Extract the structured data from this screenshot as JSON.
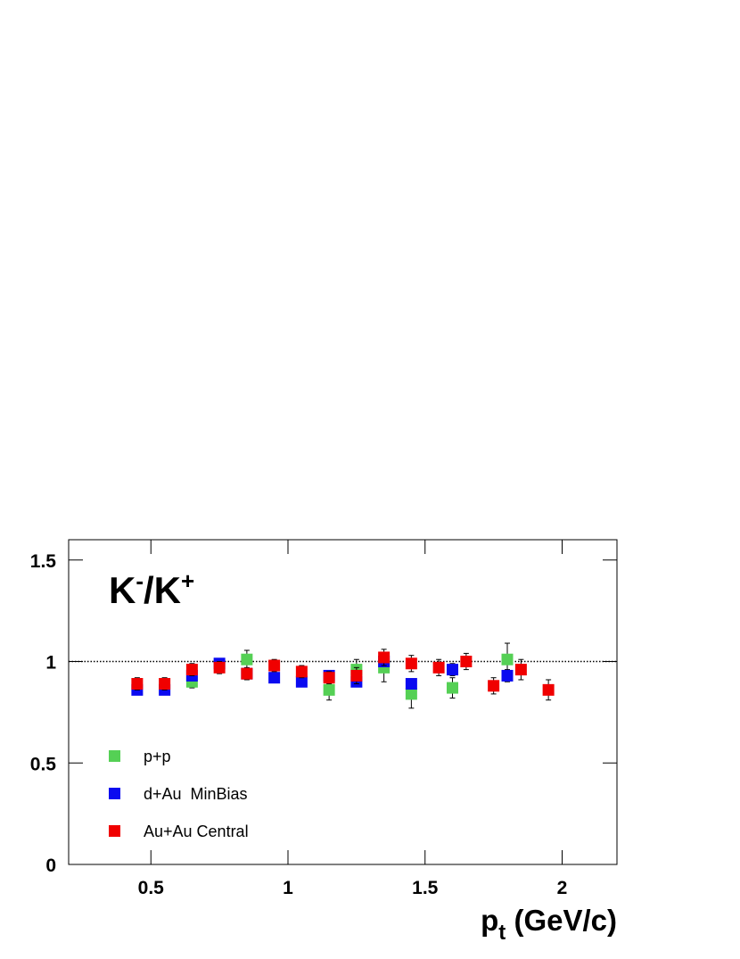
{
  "chart_data": {
    "type": "scatter",
    "annotation": [
      "K",
      "-",
      "/K",
      "+"
    ],
    "x_label": [
      "p",
      "t",
      " (GeV/c)"
    ],
    "xlim": [
      0.2,
      2.2
    ],
    "ylim": [
      0,
      1.6
    ],
    "xticks": [
      0.5,
      1,
      1.5,
      2
    ],
    "yticks": [
      0,
      0.5,
      1,
      1.5
    ],
    "reference_line": 1,
    "legend": "lower left",
    "series": [
      {
        "name": "p+p",
        "color": "#55d055",
        "x": [
          0.65,
          0.85,
          1.15,
          1.25,
          1.35,
          1.45,
          1.6,
          1.8
        ],
        "values": [
          0.9,
          1.01,
          0.86,
          0.96,
          0.97,
          0.84,
          0.87,
          1.01
        ],
        "errors": [
          0.03,
          0.045,
          0.05,
          0.05,
          0.07,
          0.07,
          0.05,
          0.08
        ]
      },
      {
        "name": "d+Au  MinBias",
        "color": "#0a0af0",
        "x": [
          0.45,
          0.55,
          0.65,
          0.75,
          0.85,
          0.95,
          1.05,
          1.15,
          1.25,
          1.35,
          1.45,
          1.6,
          1.8
        ],
        "values": [
          0.86,
          0.86,
          0.93,
          0.99,
          0.94,
          0.92,
          0.9,
          0.93,
          0.9,
          1.0,
          0.89,
          0.96,
          0.93
        ],
        "errors": [
          0.02,
          0.02,
          0.02,
          0.02,
          0.02,
          0.02,
          0.02,
          0.02,
          0.02,
          0.02,
          0.02,
          0.03,
          0.03
        ]
      },
      {
        "name": "Au+Au Central",
        "color": "#f00000",
        "x": [
          0.45,
          0.55,
          0.65,
          0.75,
          0.85,
          0.95,
          1.05,
          1.15,
          1.25,
          1.35,
          1.45,
          1.55,
          1.65,
          1.75,
          1.85,
          1.95
        ],
        "values": [
          0.89,
          0.89,
          0.96,
          0.97,
          0.94,
          0.98,
          0.95,
          0.92,
          0.93,
          1.02,
          0.99,
          0.97,
          1.0,
          0.88,
          0.96,
          0.86
        ],
        "errors": [
          0.03,
          0.03,
          0.03,
          0.03,
          0.03,
          0.03,
          0.03,
          0.03,
          0.04,
          0.04,
          0.04,
          0.04,
          0.04,
          0.04,
          0.05,
          0.05
        ]
      }
    ]
  }
}
